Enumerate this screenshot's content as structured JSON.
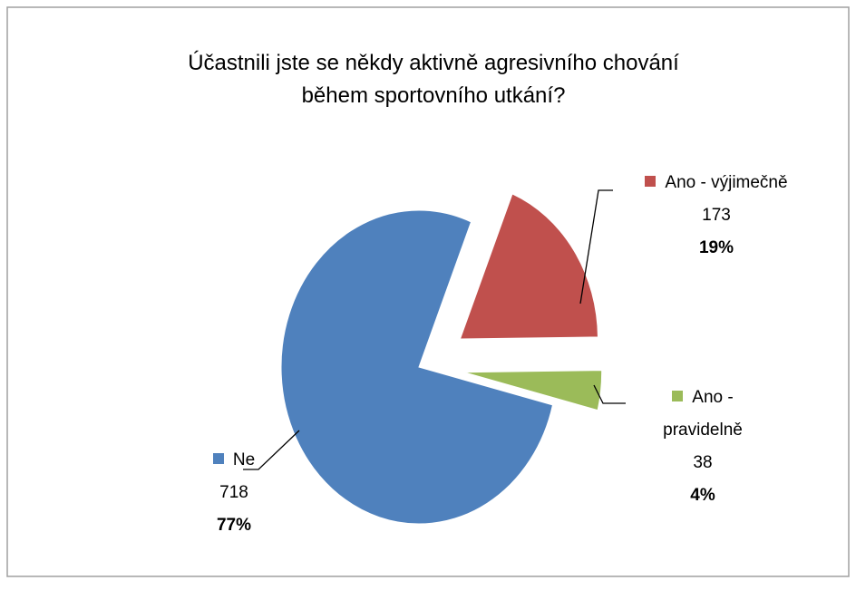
{
  "chart_data": {
    "type": "pie",
    "title": "Účastnili jste se někdy aktivně agresivního chování během sportovního utkání?",
    "categories": [
      "Ne",
      "Ano - výjimečně",
      "Ano - pravidelně"
    ],
    "values": [
      718,
      173,
      38
    ],
    "percentages": [
      77,
      19,
      4
    ],
    "percentage_labels": [
      "77%",
      "19%",
      "4%"
    ],
    "colors": [
      "#4f81bd",
      "#c0504d",
      "#9bbb59"
    ]
  }
}
